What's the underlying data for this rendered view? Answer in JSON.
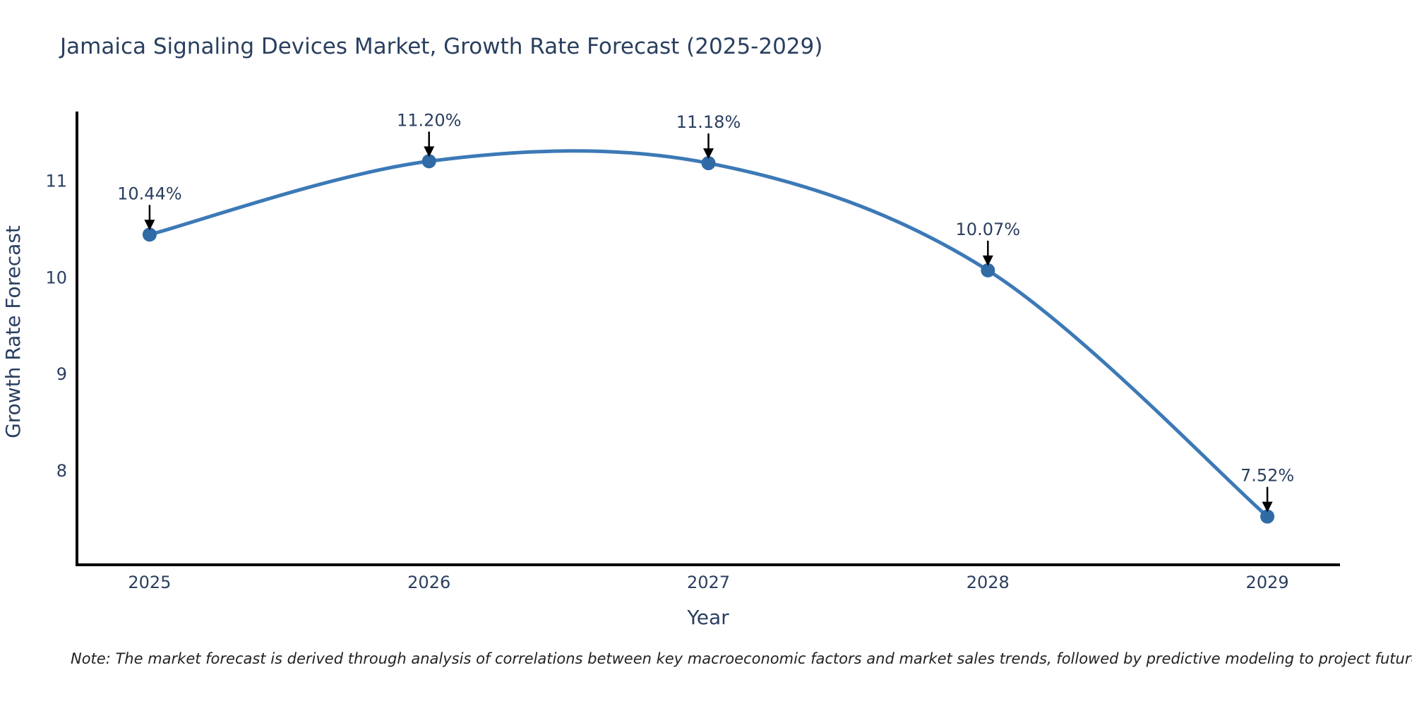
{
  "note": "Note: The market forecast is derived through analysis of correlations between key macroeconomic factors and market sales trends, followed by predictive modeling to project future sales",
  "chart_data": {
    "type": "line",
    "title": "Jamaica Signaling Devices Market, Growth Rate Forecast (2025-2029)",
    "xlabel": "Year",
    "ylabel": "Growth Rate Forecast",
    "x": [
      2025,
      2026,
      2027,
      2028,
      2029
    ],
    "values": [
      10.44,
      11.2,
      11.18,
      10.07,
      7.52
    ],
    "point_labels": [
      "10.44%",
      "11.20%",
      "11.18%",
      "10.07%",
      "7.52%"
    ],
    "x_ticks": [
      "2025",
      "2026",
      "2027",
      "2028",
      "2029"
    ],
    "y_ticks": [
      8,
      9,
      10,
      11
    ],
    "xlim": [
      2024.74,
      2029.26
    ],
    "ylim": [
      7.02,
      11.7
    ],
    "grid": false,
    "legend": "none",
    "line_shape": "spline",
    "annotations_have_arrows": true,
    "colors": {
      "line": "#3c79b6",
      "marker": "#306ba6",
      "text": "#2a3f5f",
      "axis_line": "#000000",
      "arrow": "#000000",
      "background": "#ffffff"
    }
  }
}
